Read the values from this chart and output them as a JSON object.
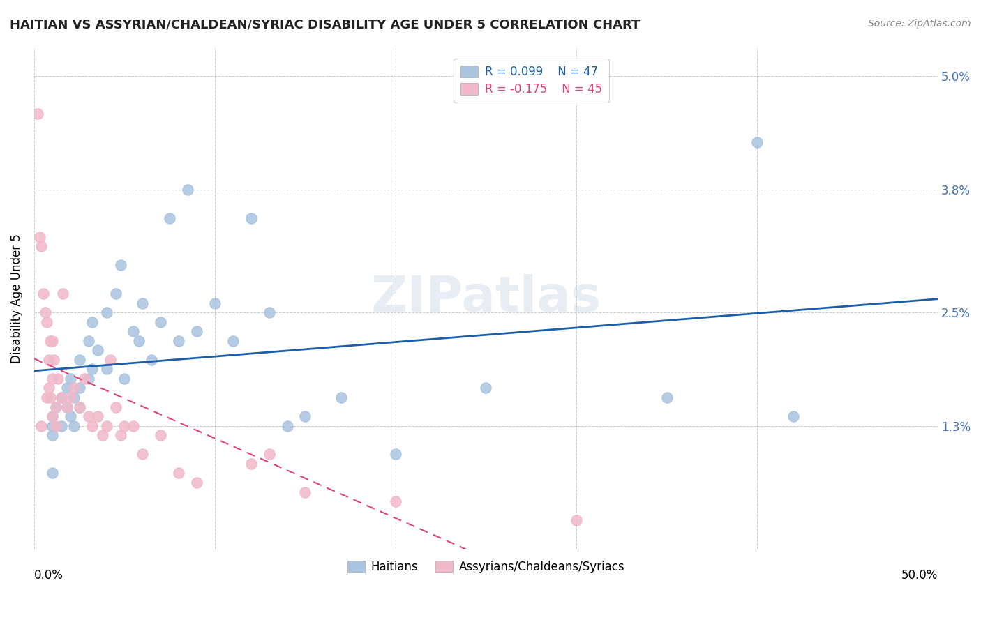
{
  "title": "HAITIAN VS ASSYRIAN/CHALDEAN/SYRIAC DISABILITY AGE UNDER 5 CORRELATION CHART",
  "source": "Source: ZipAtlas.com",
  "ylabel": "Disability Age Under 5",
  "y_ticks": [
    0.0,
    0.013,
    0.025,
    0.038,
    0.05
  ],
  "y_tick_labels": [
    "",
    "1.3%",
    "2.5%",
    "3.8%",
    "5.0%"
  ],
  "x_lim": [
    0.0,
    0.5
  ],
  "y_lim": [
    0.0,
    0.053
  ],
  "background_color": "#ffffff",
  "grid_color": "#cccccc",
  "haitians_color": "#a8c4e0",
  "assyrians_color": "#f0b8c8",
  "haitians_line_color": "#1a5fa8",
  "assyrians_line_color": "#e0427a",
  "R_haitians": 0.099,
  "N_haitians": 47,
  "R_assyrians": -0.175,
  "N_assyrians": 45,
  "haitians_x": [
    0.01,
    0.01,
    0.01,
    0.01,
    0.012,
    0.015,
    0.015,
    0.018,
    0.018,
    0.02,
    0.02,
    0.022,
    0.022,
    0.025,
    0.025,
    0.025,
    0.03,
    0.03,
    0.032,
    0.032,
    0.035,
    0.04,
    0.04,
    0.045,
    0.048,
    0.05,
    0.055,
    0.058,
    0.06,
    0.065,
    0.07,
    0.075,
    0.08,
    0.085,
    0.09,
    0.1,
    0.11,
    0.12,
    0.13,
    0.14,
    0.15,
    0.17,
    0.2,
    0.25,
    0.35,
    0.4,
    0.42
  ],
  "haitians_y": [
    0.012,
    0.013,
    0.014,
    0.008,
    0.015,
    0.016,
    0.013,
    0.017,
    0.015,
    0.018,
    0.014,
    0.016,
    0.013,
    0.02,
    0.017,
    0.015,
    0.022,
    0.018,
    0.024,
    0.019,
    0.021,
    0.025,
    0.019,
    0.027,
    0.03,
    0.018,
    0.023,
    0.022,
    0.026,
    0.02,
    0.024,
    0.035,
    0.022,
    0.038,
    0.023,
    0.026,
    0.022,
    0.035,
    0.025,
    0.013,
    0.014,
    0.016,
    0.01,
    0.017,
    0.016,
    0.043,
    0.014
  ],
  "assyrians_x": [
    0.002,
    0.003,
    0.004,
    0.004,
    0.005,
    0.006,
    0.007,
    0.007,
    0.008,
    0.008,
    0.009,
    0.009,
    0.01,
    0.01,
    0.01,
    0.011,
    0.012,
    0.012,
    0.013,
    0.015,
    0.016,
    0.018,
    0.02,
    0.022,
    0.025,
    0.028,
    0.03,
    0.032,
    0.035,
    0.038,
    0.04,
    0.042,
    0.045,
    0.048,
    0.05,
    0.055,
    0.06,
    0.07,
    0.08,
    0.09,
    0.12,
    0.13,
    0.15,
    0.2,
    0.3
  ],
  "assyrians_y": [
    0.046,
    0.033,
    0.032,
    0.013,
    0.027,
    0.025,
    0.024,
    0.016,
    0.02,
    0.017,
    0.022,
    0.016,
    0.022,
    0.018,
    0.014,
    0.02,
    0.015,
    0.013,
    0.018,
    0.016,
    0.027,
    0.015,
    0.016,
    0.017,
    0.015,
    0.018,
    0.014,
    0.013,
    0.014,
    0.012,
    0.013,
    0.02,
    0.015,
    0.012,
    0.013,
    0.013,
    0.01,
    0.012,
    0.008,
    0.007,
    0.009,
    0.01,
    0.006,
    0.005,
    0.003
  ]
}
